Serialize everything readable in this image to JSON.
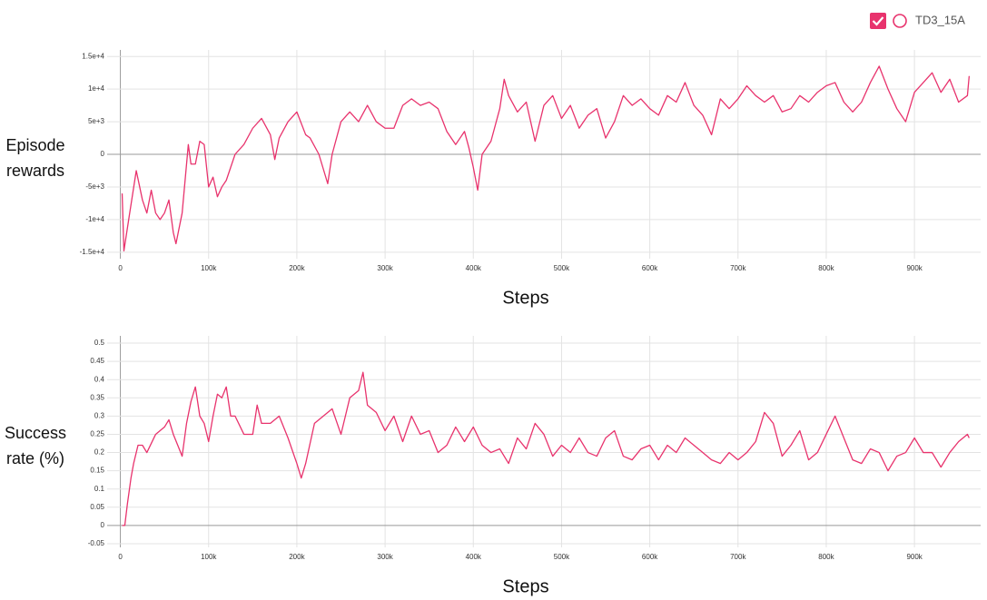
{
  "chart_data": [
    {
      "type": "line",
      "ylabel": "Episode rewards",
      "xlabel": "Steps",
      "xlim": [
        -15000,
        975000
      ],
      "ylim": [
        -16000,
        16000
      ],
      "xticks": [
        0,
        {
          "value": 100000,
          "label": "100k"
        },
        {
          "value": 200000,
          "label": "200k"
        },
        {
          "value": 300000,
          "label": "300k"
        },
        {
          "value": 400000,
          "label": "400k"
        },
        {
          "value": 500000,
          "label": "500k"
        },
        {
          "value": 600000,
          "label": "600k"
        },
        {
          "value": 700000,
          "label": "700k"
        },
        {
          "value": 800000,
          "label": "800k"
        },
        {
          "value": 900000,
          "label": "900k"
        }
      ],
      "yticks": [
        {
          "value": -15000,
          "label": "-1.5e+4"
        },
        {
          "value": -10000,
          "label": "-1e+4"
        },
        {
          "value": -5000,
          "label": "-5e+3"
        },
        0,
        {
          "value": 5000,
          "label": "5e+3"
        },
        {
          "value": 10000,
          "label": "1e+4"
        },
        {
          "value": 15000,
          "label": "1.5e+4"
        }
      ],
      "grid": true,
      "x": [
        2000,
        4000,
        10000,
        18000,
        25000,
        30000,
        35000,
        40000,
        45000,
        50000,
        55000,
        60000,
        63000,
        70000,
        77000,
        80000,
        85000,
        90000,
        95000,
        100000,
        105000,
        110000,
        115000,
        120000,
        130000,
        140000,
        150000,
        160000,
        170000,
        175000,
        180000,
        190000,
        200000,
        210000,
        215000,
        225000,
        235000,
        240000,
        250000,
        260000,
        270000,
        280000,
        290000,
        300000,
        310000,
        320000,
        330000,
        340000,
        350000,
        360000,
        370000,
        380000,
        390000,
        395000,
        400000,
        405000,
        410000,
        420000,
        430000,
        435000,
        440000,
        450000,
        460000,
        470000,
        480000,
        490000,
        500000,
        510000,
        520000,
        530000,
        540000,
        550000,
        560000,
        570000,
        580000,
        590000,
        600000,
        610000,
        620000,
        630000,
        640000,
        650000,
        660000,
        670000,
        680000,
        690000,
        700000,
        710000,
        720000,
        730000,
        740000,
        750000,
        760000,
        770000,
        780000,
        790000,
        800000,
        810000,
        820000,
        830000,
        840000,
        850000,
        860000,
        870000,
        880000,
        890000,
        900000,
        910000,
        920000,
        930000,
        940000,
        950000,
        960000,
        962000
      ],
      "series": [
        {
          "name": "TD3_15A",
          "color": "#e8336d",
          "values": [
            -6000,
            -14800,
            -9500,
            -2500,
            -7000,
            -9000,
            -5500,
            -9000,
            -10000,
            -9000,
            -7000,
            -12000,
            -13700,
            -9000,
            1500,
            -1500,
            -1500,
            2000,
            1500,
            -5000,
            -3500,
            -6500,
            -5000,
            -4000,
            0,
            1500,
            4000,
            5500,
            3000,
            -800,
            2500,
            5000,
            6500,
            3000,
            2500,
            0,
            -4500,
            0,
            5000,
            6500,
            5000,
            7500,
            5000,
            4000,
            4000,
            7500,
            8500,
            7500,
            8000,
            7000,
            3500,
            1500,
            3500,
            1000,
            -2000,
            -5500,
            0,
            2000,
            7000,
            11500,
            9000,
            6500,
            8000,
            2000,
            7500,
            9000,
            5500,
            7500,
            4000,
            6000,
            7000,
            2500,
            5000,
            9000,
            7500,
            8500,
            7000,
            6000,
            9000,
            8000,
            11000,
            7500,
            6000,
            3000,
            8500,
            7000,
            8500,
            10500,
            9000,
            8000,
            9000,
            6500,
            7000,
            9000,
            8000,
            9500,
            10500,
            11000,
            8000,
            6500,
            8000,
            11000,
            13500,
            10000,
            7000,
            5000,
            9500,
            11000,
            12500,
            9500,
            11500,
            8000,
            9000,
            12000
          ]
        }
      ]
    },
    {
      "type": "line",
      "ylabel": "Success rate (%)",
      "xlabel": "Steps",
      "xlim": [
        -15000,
        975000
      ],
      "ylim": [
        -0.06,
        0.52
      ],
      "xticks": [
        0,
        {
          "value": 100000,
          "label": "100k"
        },
        {
          "value": 200000,
          "label": "200k"
        },
        {
          "value": 300000,
          "label": "300k"
        },
        {
          "value": 400000,
          "label": "400k"
        },
        {
          "value": 500000,
          "label": "500k"
        },
        {
          "value": 600000,
          "label": "600k"
        },
        {
          "value": 700000,
          "label": "700k"
        },
        {
          "value": 800000,
          "label": "800k"
        },
        {
          "value": 900000,
          "label": "900k"
        }
      ],
      "yticks": [
        -0.05,
        0,
        0.05,
        0.1,
        0.15,
        0.2,
        0.25,
        0.3,
        0.35,
        0.4,
        0.45,
        0.5
      ],
      "grid": true,
      "x": [
        2000,
        5000,
        8000,
        12000,
        15000,
        20000,
        25000,
        30000,
        40000,
        50000,
        55000,
        60000,
        65000,
        70000,
        75000,
        80000,
        85000,
        90000,
        95000,
        100000,
        105000,
        110000,
        115000,
        120000,
        125000,
        130000,
        140000,
        150000,
        155000,
        160000,
        170000,
        180000,
        190000,
        200000,
        205000,
        210000,
        220000,
        230000,
        240000,
        250000,
        260000,
        270000,
        275000,
        280000,
        290000,
        300000,
        310000,
        320000,
        330000,
        340000,
        350000,
        360000,
        370000,
        380000,
        390000,
        400000,
        410000,
        420000,
        430000,
        440000,
        450000,
        460000,
        470000,
        480000,
        490000,
        500000,
        510000,
        520000,
        530000,
        540000,
        550000,
        560000,
        570000,
        580000,
        590000,
        600000,
        610000,
        620000,
        630000,
        640000,
        650000,
        660000,
        670000,
        680000,
        690000,
        700000,
        710000,
        720000,
        730000,
        740000,
        750000,
        760000,
        770000,
        780000,
        790000,
        800000,
        810000,
        820000,
        830000,
        840000,
        850000,
        860000,
        870000,
        880000,
        890000,
        900000,
        910000,
        920000,
        930000,
        940000,
        950000,
        960000,
        962000
      ],
      "series": [
        {
          "color": "#e8336d",
          "values": [
            0,
            0,
            0.06,
            0.13,
            0.17,
            0.22,
            0.22,
            0.2,
            0.25,
            0.27,
            0.29,
            0.25,
            0.22,
            0.19,
            0.28,
            0.34,
            0.38,
            0.3,
            0.28,
            0.23,
            0.3,
            0.36,
            0.35,
            0.38,
            0.3,
            0.3,
            0.25,
            0.25,
            0.33,
            0.28,
            0.28,
            0.3,
            0.24,
            0.17,
            0.13,
            0.17,
            0.28,
            0.3,
            0.32,
            0.25,
            0.35,
            0.37,
            0.42,
            0.33,
            0.31,
            0.26,
            0.3,
            0.23,
            0.3,
            0.25,
            0.26,
            0.2,
            0.22,
            0.27,
            0.23,
            0.27,
            0.22,
            0.2,
            0.21,
            0.17,
            0.24,
            0.21,
            0.28,
            0.25,
            0.19,
            0.22,
            0.2,
            0.24,
            0.2,
            0.19,
            0.24,
            0.26,
            0.19,
            0.18,
            0.21,
            0.22,
            0.18,
            0.22,
            0.2,
            0.24,
            0.22,
            0.2,
            0.18,
            0.17,
            0.2,
            0.18,
            0.2,
            0.23,
            0.31,
            0.28,
            0.19,
            0.22,
            0.26,
            0.18,
            0.2,
            0.25,
            0.3,
            0.24,
            0.18,
            0.17,
            0.21,
            0.2,
            0.15,
            0.19,
            0.2,
            0.24,
            0.2,
            0.2,
            0.16,
            0.2,
            0.23,
            0.25,
            0.24
          ]
        }
      ]
    }
  ]
}
